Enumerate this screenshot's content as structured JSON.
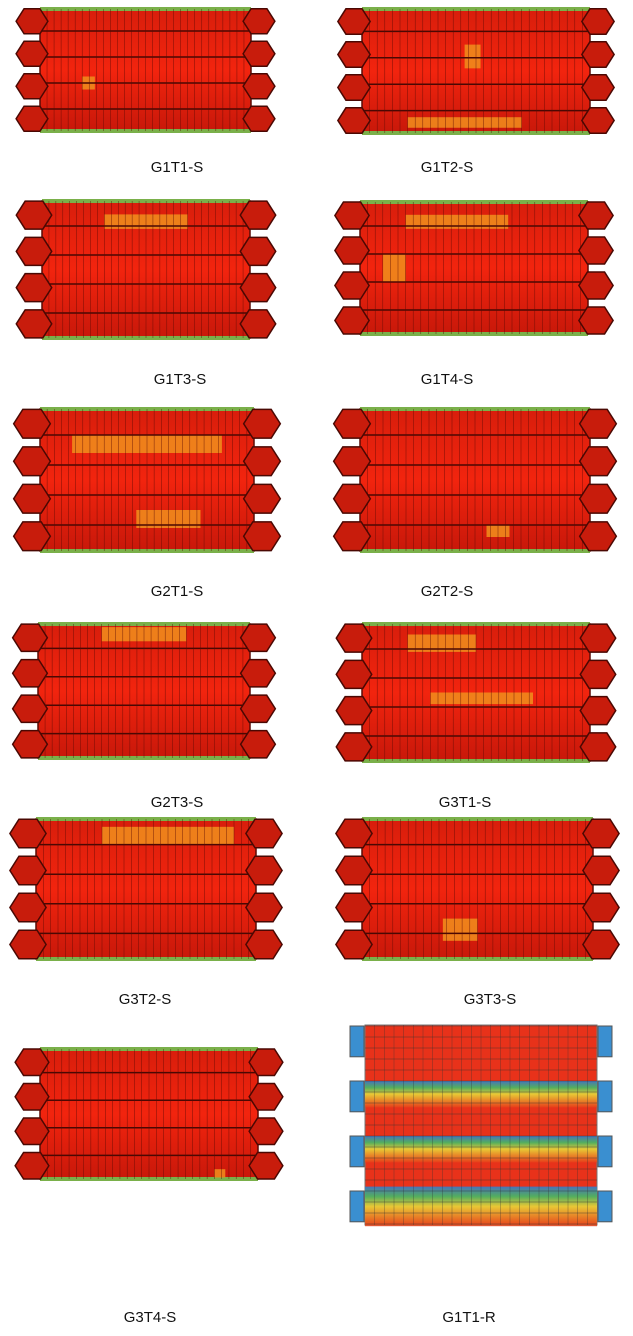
{
  "panels": [
    {
      "label": "G1T1-S"
    },
    {
      "label": "G1T2-S"
    },
    {
      "label": "G1T3-S"
    },
    {
      "label": "G1T4-S"
    },
    {
      "label": "G2T1-S"
    },
    {
      "label": "G2T2-S"
    },
    {
      "label": "G2T3-S"
    },
    {
      "label": "G3T1-S"
    },
    {
      "label": "G3T2-S"
    },
    {
      "label": "G3T3-S"
    },
    {
      "label": "G3T4-S"
    },
    {
      "label": "G1T1-R"
    }
  ]
}
